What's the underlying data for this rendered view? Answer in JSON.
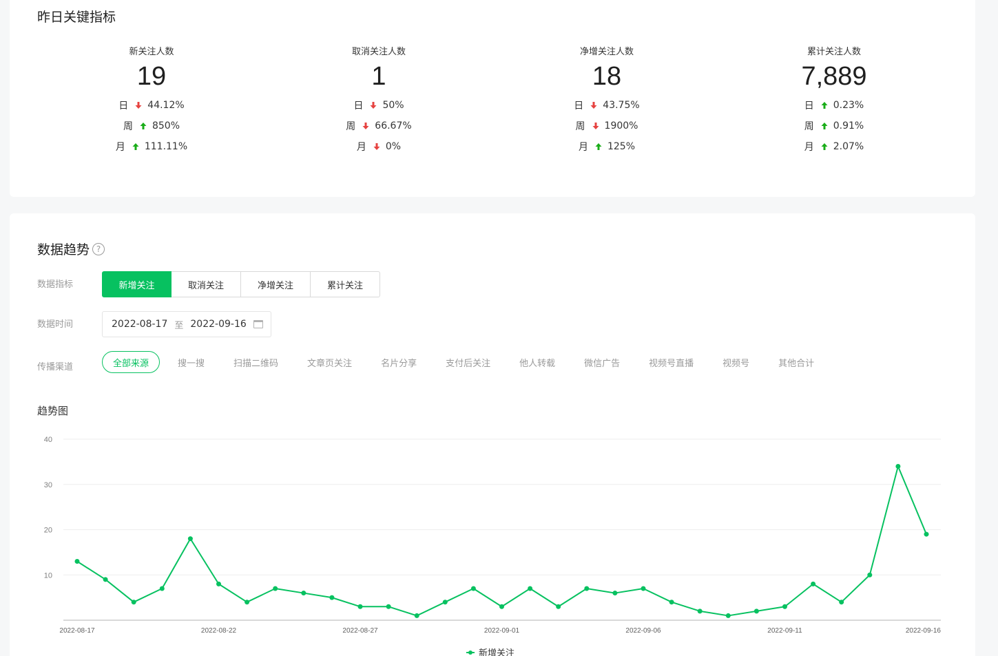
{
  "key_metrics": {
    "title": "昨日关键指标",
    "items": [
      {
        "label": "新关注人数",
        "value": "19",
        "rows": [
          {
            "period": "日",
            "dir": "down",
            "pct": "44.12%"
          },
          {
            "period": "周",
            "dir": "up",
            "pct": "850%"
          },
          {
            "period": "月",
            "dir": "up",
            "pct": "111.11%"
          }
        ]
      },
      {
        "label": "取消关注人数",
        "value": "1",
        "rows": [
          {
            "period": "日",
            "dir": "down",
            "pct": "50%"
          },
          {
            "period": "周",
            "dir": "down",
            "pct": "66.67%"
          },
          {
            "period": "月",
            "dir": "down",
            "pct": "0%"
          }
        ]
      },
      {
        "label": "净增关注人数",
        "value": "18",
        "rows": [
          {
            "period": "日",
            "dir": "down",
            "pct": "43.75%"
          },
          {
            "period": "周",
            "dir": "down",
            "pct": "1900%"
          },
          {
            "period": "月",
            "dir": "up",
            "pct": "125%"
          }
        ]
      },
      {
        "label": "累计关注人数",
        "value": "7,889",
        "rows": [
          {
            "period": "日",
            "dir": "up",
            "pct": "0.23%"
          },
          {
            "period": "周",
            "dir": "up",
            "pct": "0.91%"
          },
          {
            "period": "月",
            "dir": "up",
            "pct": "2.07%"
          }
        ]
      }
    ]
  },
  "trend": {
    "title": "数据趋势",
    "help_icon": "?",
    "metric_label": "数据指标",
    "metric_tabs": [
      "新增关注",
      "取消关注",
      "净增关注",
      "累计关注"
    ],
    "metric_active": 0,
    "time_label": "数据时间",
    "date_start": "2022-08-17",
    "date_sep": "至",
    "date_end": "2022-09-16",
    "channel_label": "传播渠道",
    "channels": [
      "全部来源",
      "搜一搜",
      "扫描二维码",
      "文章页关注",
      "名片分享",
      "支付后关注",
      "他人转载",
      "微信广告",
      "视频号直播",
      "视频号",
      "其他合计"
    ],
    "channel_active": 0,
    "chart_title": "趋势图"
  },
  "colors": {
    "accent": "#07c160",
    "up": "#1aad19",
    "down": "#e64340"
  },
  "chart_data": {
    "type": "line",
    "x": [
      "2022-08-17",
      "2022-08-18",
      "2022-08-19",
      "2022-08-20",
      "2022-08-21",
      "2022-08-22",
      "2022-08-23",
      "2022-08-24",
      "2022-08-25",
      "2022-08-26",
      "2022-08-27",
      "2022-08-28",
      "2022-08-29",
      "2022-08-30",
      "2022-08-31",
      "2022-09-01",
      "2022-09-02",
      "2022-09-03",
      "2022-09-04",
      "2022-09-05",
      "2022-09-06",
      "2022-09-07",
      "2022-09-08",
      "2022-09-09",
      "2022-09-10",
      "2022-09-11",
      "2022-09-12",
      "2022-09-13",
      "2022-09-14",
      "2022-09-15",
      "2022-09-16"
    ],
    "x_tick_labels": [
      "2022-08-17",
      "2022-08-22",
      "2022-08-27",
      "2022-09-01",
      "2022-09-06",
      "2022-09-11",
      "2022-09-16"
    ],
    "series": [
      {
        "name": "新增关注",
        "color": "#07c160",
        "values": [
          13,
          9,
          4,
          7,
          18,
          8,
          4,
          7,
          6,
          5,
          3,
          3,
          1,
          4,
          7,
          3,
          7,
          3,
          7,
          6,
          7,
          4,
          2,
          1,
          2,
          3,
          8,
          4,
          10,
          34,
          19
        ]
      }
    ],
    "ylim": [
      0,
      40
    ],
    "y_ticks": [
      10,
      20,
      30,
      40
    ],
    "grid": true,
    "legend": "bottom-center"
  }
}
